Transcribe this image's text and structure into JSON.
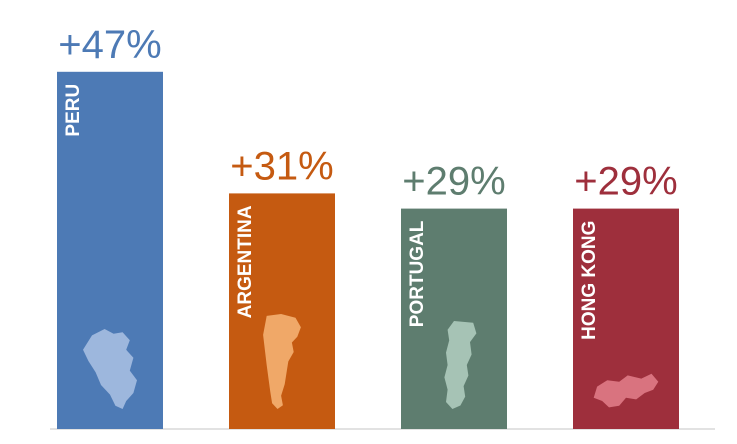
{
  "chart_data": {
    "type": "bar",
    "categories": [
      "PERU",
      "ARGENTINA",
      "PORTUGAL",
      "HONG KONG"
    ],
    "values": [
      47,
      31,
      29,
      29
    ],
    "data_labels": [
      "+47%",
      "+31%",
      "+29%",
      "+29%"
    ],
    "unit": "%",
    "title": "",
    "xlabel": "",
    "ylabel": "",
    "ylim": [
      0,
      50
    ],
    "grid": false,
    "legend": "none",
    "colors": [
      "#4d7ab5",
      "#c55a11",
      "#5e7d6f",
      "#9e2f3c"
    ],
    "label_colors": [
      "#4d7ab5",
      "#c55a11",
      "#5e7d6f",
      "#9e2f3c"
    ],
    "map_colors": [
      "#9db7dd",
      "#f0a868",
      "#a6c3b5",
      "#d9737f"
    ],
    "icons": [
      "peru-map-icon",
      "argentina-map-icon",
      "portugal-map-icon",
      "hong-kong-map-icon"
    ]
  }
}
